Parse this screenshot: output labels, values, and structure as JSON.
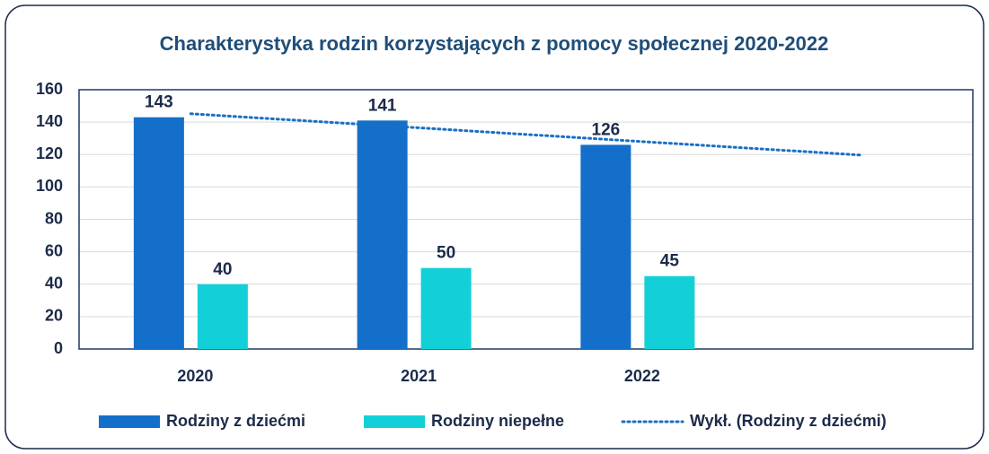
{
  "chart_data": {
    "type": "bar",
    "title": "Charakterystyka rodzin korzystających z pomocy społecznej 2020-2022",
    "categories": [
      "2020",
      "2021",
      "2022",
      null
    ],
    "series": [
      {
        "name": "Rodziny z dziećmi",
        "color": "#136fc9",
        "values": [
          143,
          141,
          126,
          null
        ]
      },
      {
        "name": "Rodziny niepełne",
        "color": "#13d0d8",
        "values": [
          40,
          50,
          45,
          null
        ]
      },
      {
        "name": "Wykł. (Rodziny z dziećmi)",
        "color": "#1a6fc4",
        "type": "trendline",
        "values": [
          145.17,
          136.67,
          128.17,
          119.67
        ]
      }
    ],
    "ylim": [
      0,
      160
    ],
    "yticks": [
      0,
      20,
      40,
      60,
      80,
      100,
      120,
      140,
      160
    ],
    "grid": true,
    "legend": "bottom"
  }
}
